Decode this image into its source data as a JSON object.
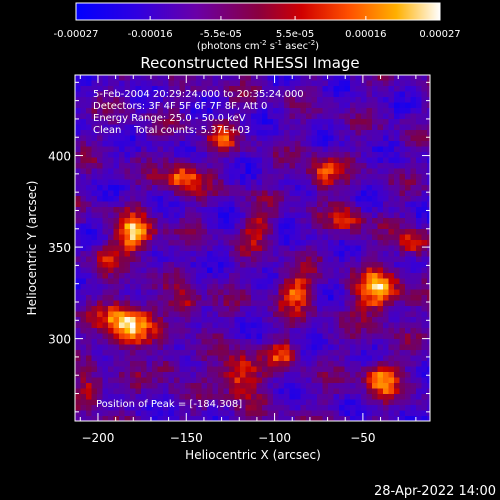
{
  "colorbar": {
    "ticks": [
      "-0.00027",
      "-0.00016",
      "-5.5e-05",
      "5.5e-05",
      "0.00016",
      "0.00027"
    ],
    "unit_main": "(photons cm",
    "unit_sup1": "-2",
    "unit_mid1": " s",
    "unit_sup2": "-1",
    "unit_mid2": " asec",
    "unit_sup3": "-2",
    "unit_end": ")"
  },
  "chart_data": {
    "type": "heatmap",
    "title": "Reconstructed RHESSI Image",
    "xlabel": "Heliocentric X (arcsec)",
    "ylabel": "Heliocentric Y (arcsec)",
    "xlim": [
      -213,
      -12
    ],
    "ylim": [
      255,
      444
    ],
    "x_ticks": [
      -200,
      -150,
      -100,
      -50
    ],
    "y_ticks": [
      300,
      350,
      400
    ],
    "color_range": [
      -0.00027,
      0.00027
    ],
    "colormap": [
      "#0000ff",
      "#5000c8",
      "#7a0078",
      "#c80000",
      "#ff6000",
      "#ffd000",
      "#ffffff"
    ],
    "peak": [
      -184,
      308
    ]
  },
  "annotations": {
    "line1": "5-Feb-2004 20:29:24.000 to 20:35:24.000",
    "line2": "Detectors: 3F 4F 5F 6F 7F 8F, Att 0",
    "line3": "Energy Range: 25.0 - 50.0 keV",
    "line4": "Clean    Total counts: 5.37E+03",
    "peak_label": "Position of Peak = [-184,308]"
  },
  "footer": {
    "timestamp": "28-Apr-2022 14:00"
  }
}
